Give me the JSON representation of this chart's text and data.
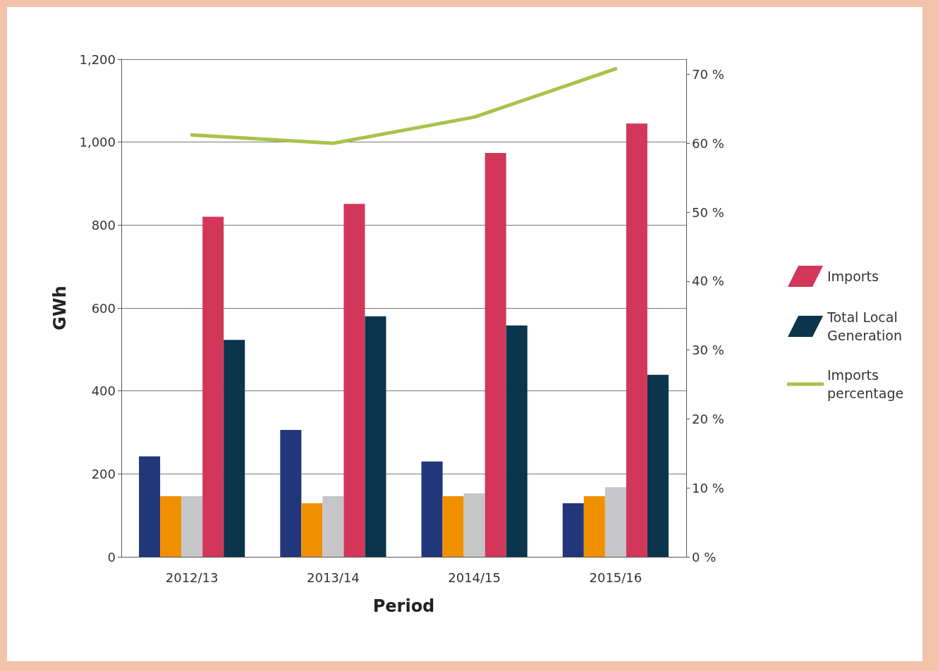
{
  "chart_data": {
    "type": "bar",
    "xlabel": "Period",
    "ylabel": "GWh",
    "categories": [
      "2012/13",
      "2013/14",
      "2014/15",
      "2015/16"
    ],
    "series": [
      {
        "color": "#22367a",
        "values": [
          242,
          306,
          230,
          129
        ]
      },
      {
        "color": "#f09000",
        "values": [
          146,
          129,
          146,
          146
        ]
      },
      {
        "color": "#c6c6c8",
        "values": [
          146,
          146,
          153,
          168
        ]
      },
      {
        "name": "Imports",
        "color": "#d2375a",
        "values": [
          820,
          851,
          974,
          1045
        ]
      },
      {
        "name": "Total Local Generation",
        "color": "#0a354c",
        "values": [
          523,
          580,
          558,
          439
        ]
      },
      {
        "name": "Imports percentage",
        "type": "line",
        "axis": "y2",
        "color": "#a8c34a",
        "values": [
          61.2,
          60.0,
          63.8,
          70.8
        ]
      }
    ],
    "ylim": [
      0,
      1200
    ],
    "yticks": [
      0,
      200,
      400,
      600,
      800,
      {
        "value": 1000,
        "label": "1,000"
      },
      {
        "value": 1200,
        "label": "1,200"
      }
    ],
    "y2lim": [
      0,
      72.2
    ],
    "y2ticks": [
      {
        "value": 0,
        "label": "0 %"
      },
      {
        "value": 10,
        "label": "10 %"
      },
      {
        "value": 20,
        "label": "20 %"
      },
      {
        "value": 30,
        "label": "30 %"
      },
      {
        "value": 40,
        "label": "40 %"
      },
      {
        "value": 50,
        "label": "50 %"
      },
      {
        "value": 60,
        "label": "60 %"
      },
      {
        "value": 70,
        "label": "70 %"
      }
    ],
    "grid": "y",
    "legend": "right",
    "marker": "none"
  }
}
